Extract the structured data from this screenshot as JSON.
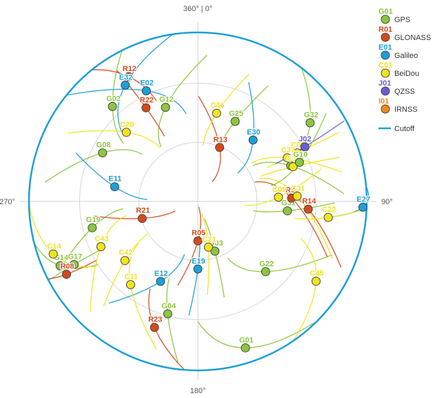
{
  "chart_data": {
    "type": "polar-skyplot",
    "azimuth_labels": {
      "north": "360° | 0°",
      "east": "90°",
      "south": "180°",
      "west": "270°"
    },
    "legend": [
      {
        "code": "G01",
        "name": "GPS",
        "color": "#8cc63f"
      },
      {
        "code": "R01",
        "name": "GLONASS",
        "color": "#d44a1c"
      },
      {
        "code": "E01",
        "name": "Galileo",
        "color": "#1b9fd8"
      },
      {
        "code": "C01",
        "name": "BeiDou",
        "color": "#f2e41c"
      },
      {
        "code": "J01",
        "name": "QZSS",
        "color": "#6a5cd6"
      },
      {
        "code": "I01",
        "name": "IRNSS",
        "color": "#f08a1c"
      }
    ],
    "cutoff_label": "Cutoff",
    "cutoff_color": "#1b9fd8",
    "satellites": [
      {
        "id": "G01",
        "sys": "GPS",
        "az": 162,
        "el": 8
      },
      {
        "id": "G02",
        "sys": "GPS",
        "az": 318,
        "el": 22
      },
      {
        "id": "G03",
        "sys": "GPS",
        "az": 161,
        "el": 62
      },
      {
        "id": "G04",
        "sys": "GPS",
        "az": 195,
        "el": 28
      },
      {
        "id": "G08",
        "sys": "GPS",
        "az": 297,
        "el": 33
      },
      {
        "id": "G12",
        "sys": "GPS",
        "az": 341,
        "el": 37
      },
      {
        "id": "G14",
        "sys": "GPS",
        "az": 245,
        "el": 9
      },
      {
        "id": "G17",
        "sys": "GPS",
        "az": 243,
        "el": 16
      },
      {
        "id": "G19",
        "sys": "GPS",
        "az": 256,
        "el": 32
      },
      {
        "id": "G22",
        "sys": "GPS",
        "az": 136,
        "el": 38
      },
      {
        "id": "G24",
        "sys": "GPS",
        "az": 69,
        "el": 37
      },
      {
        "id": "G25",
        "sys": "GPS",
        "az": 25,
        "el": 43
      },
      {
        "id": "G31",
        "sys": "GPS",
        "az": 96,
        "el": 42
      },
      {
        "id": "G32",
        "sys": "GPS",
        "az": 55,
        "el": 17
      },
      {
        "id": "R04",
        "sys": "GLONASS",
        "az": 88,
        "el": 40
      },
      {
        "id": "R05",
        "sys": "GLONASS",
        "az": 180,
        "el": 69
      },
      {
        "id": "R08",
        "sys": "GLONASS",
        "az": 241,
        "el": 10
      },
      {
        "id": "R12",
        "sys": "GLONASS",
        "az": 331,
        "el": 14
      },
      {
        "id": "R13",
        "sys": "GLONASS",
        "az": 22,
        "el": 59
      },
      {
        "id": "R14",
        "sys": "GLONASS",
        "az": 94,
        "el": 31
      },
      {
        "id": "R21",
        "sys": "GLONASS",
        "az": 253,
        "el": 59
      },
      {
        "id": "R22",
        "sys": "GLONASS",
        "az": 331,
        "el": 33
      },
      {
        "id": "R23",
        "sys": "GLONASS",
        "az": 199,
        "el": 19
      },
      {
        "id": "E02",
        "sys": "Galileo",
        "az": 335,
        "el": 25
      },
      {
        "id": "E12",
        "sys": "Galileo",
        "az": 205,
        "el": 43
      },
      {
        "id": "E19",
        "sys": "Galileo",
        "az": 180,
        "el": 54
      },
      {
        "id": "E27",
        "sys": "Galileo",
        "az": 92,
        "el": 2
      },
      {
        "id": "E30",
        "sys": "Galileo",
        "az": 42,
        "el": 46
      },
      {
        "id": "E32",
        "sys": "Galileo",
        "az": 328,
        "el": 17
      },
      {
        "id": "E11",
        "sys": "Galileo",
        "az": 280,
        "el": 45
      },
      {
        "id": "C06",
        "sys": "BeiDou",
        "az": 64,
        "el": 31
      },
      {
        "id": "C09",
        "sys": "BeiDou",
        "az": 87,
        "el": 47
      },
      {
        "id": "C11",
        "sys": "BeiDou",
        "az": 219,
        "el": 33
      },
      {
        "id": "C14",
        "sys": "BeiDou",
        "az": 250,
        "el": 8
      },
      {
        "id": "C21",
        "sys": "BeiDou",
        "az": 167,
        "el": 65
      },
      {
        "id": "C22",
        "sys": "BeiDou",
        "az": 97,
        "el": 20
      },
      {
        "id": "C28",
        "sys": "BeiDou",
        "az": 314,
        "el": 37
      },
      {
        "id": "C31",
        "sys": "BeiDou",
        "az": 87,
        "el": 37
      },
      {
        "id": "C37",
        "sys": "BeiDou",
        "az": 64,
        "el": 37
      },
      {
        "id": "C39",
        "sys": "BeiDou",
        "az": 70,
        "el": 36
      },
      {
        "id": "C42",
        "sys": "BeiDou",
        "az": 231,
        "el": 40
      },
      {
        "id": "C43",
        "sys": "BeiDou",
        "az": 245,
        "el": 33
      },
      {
        "id": "C45",
        "sys": "BeiDou",
        "az": 124,
        "el": 14
      },
      {
        "id": "C46",
        "sys": "BeiDou",
        "az": 12,
        "el": 42
      },
      {
        "id": "J02",
        "sys": "QZSS",
        "az": 63,
        "el": 26
      },
      {
        "id": "G10",
        "sys": "GPS",
        "az": 69,
        "el": 32
      }
    ]
  }
}
